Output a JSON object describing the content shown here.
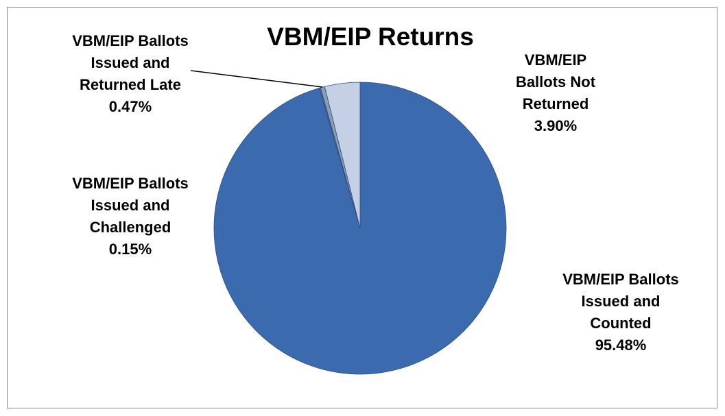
{
  "chart_data": {
    "type": "pie",
    "title": "VBM/EIP Returns",
    "categories": [
      "VBM/EIP Ballots Issued and Counted",
      "VBM/EIP Ballots Issued and Challenged",
      "VBM/EIP Ballots Issued and Returned Late",
      "VBM/EIP Ballots Not Returned"
    ],
    "values": [
      95.48,
      0.15,
      0.47,
      3.9
    ],
    "value_labels": [
      "95.48%",
      "0.15%",
      "0.47%",
      "3.90%"
    ],
    "colors": [
      "#3b6bae",
      "#4a6690",
      "#8d9cb5",
      "#c5cfe6"
    ]
  }
}
